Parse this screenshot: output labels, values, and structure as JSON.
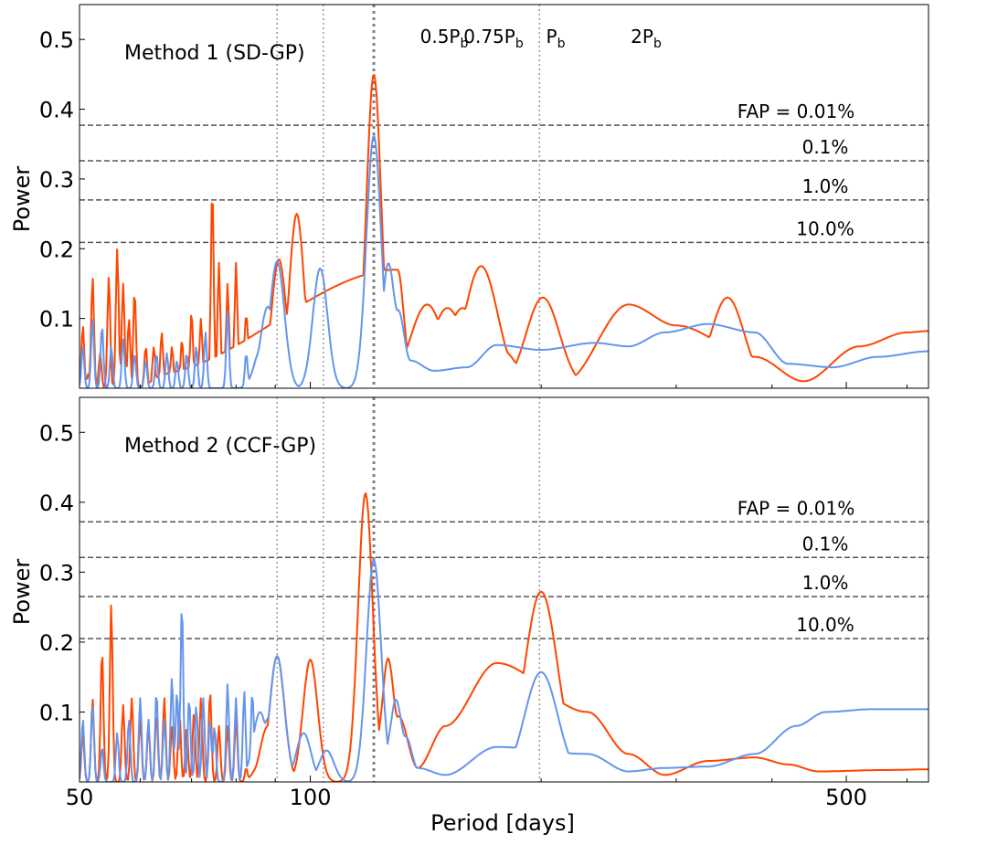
{
  "chart_data": {
    "type": "line",
    "xlabel": "Period [days]",
    "ylabel": "Power",
    "xscale": "log",
    "xlim": [
      50,
      640
    ],
    "ylim": [
      0,
      0.55
    ],
    "xticks": [
      50,
      100,
      500
    ],
    "xtick_labels": [
      "50",
      "100",
      "500"
    ],
    "yticks": [
      0.1,
      0.2,
      0.3,
      0.4,
      0.5
    ],
    "ytick_labels": [
      "0.1",
      "0.2",
      "0.3",
      "0.4",
      "0.5"
    ],
    "colors": {
      "orange": "#ff4500",
      "blue": "#6495ed",
      "fap_line": "#555555",
      "marker_line": "#999999",
      "pb_line": "#808080"
    },
    "markers": [
      {
        "period": 90.5,
        "base": "0.5P",
        "sub": "b"
      },
      {
        "period": 104,
        "base": "0.75P",
        "sub": "b"
      },
      {
        "period": 121,
        "base": "P",
        "sub": "b"
      },
      {
        "period": 199,
        "base": "2P",
        "sub": "b"
      }
    ],
    "panels": [
      {
        "title": "Method 1 (SD-GP)",
        "fap": [
          {
            "label": "FAP = 0.01%",
            "level": 0.377
          },
          {
            "label": "0.1%",
            "level": 0.326
          },
          {
            "label": "1.0%",
            "level": 0.27
          },
          {
            "label": "10.0%",
            "level": 0.209
          }
        ],
        "series": [
          {
            "color": "orange",
            "peaks": [
              [
                50.5,
                0.09
              ],
              [
                51.3,
                0.02
              ],
              [
                52,
                0.16
              ],
              [
                53.2,
                0.05
              ],
              [
                54.6,
                0.16
              ],
              [
                56,
                0.2
              ],
              [
                57,
                0.15
              ],
              [
                58,
                0.1
              ],
              [
                59,
                0.14
              ],
              [
                61,
                0.06
              ],
              [
                62.5,
                0.06
              ],
              [
                64,
                0.08
              ],
              [
                66,
                0.06
              ],
              [
                68,
                0.07
              ],
              [
                70,
                0.11
              ],
              [
                72,
                0.1
              ],
              [
                74.5,
                0.29
              ],
              [
                76,
                0.18
              ],
              [
                78,
                0.15
              ],
              [
                80,
                0.18
              ],
              [
                82.5,
                0.11
              ],
              [
                86.5,
                0.07
              ],
              [
                89,
                0.05
              ],
              [
                91,
                0.185
              ],
              [
                96,
                0.25
              ],
              [
                121,
                0.45
              ],
              [
                142,
                0.12
              ],
              [
                151,
                0.115
              ],
              [
                158,
                0.115
              ],
              [
                167,
                0.175
              ],
              [
                201,
                0.13
              ],
              [
                236,
                0.005
              ],
              [
                350,
                0.13
              ],
              [
                470,
                0.005
              ]
            ],
            "points": [
              [
                62,
                0.02
              ],
              [
                130,
                0.17
              ],
              [
                135,
                0.035
              ],
              [
                145,
                0.1
              ],
              [
                175,
                0.06
              ],
              [
                200,
                0.0
              ],
              [
                215,
                0.01
              ],
              [
                260,
                0.12
              ],
              [
                300,
                0.09
              ],
              [
                380,
                0.045
              ],
              [
                440,
                0.01
              ],
              [
                520,
                0.06
              ],
              [
                600,
                0.08
              ],
              [
                640,
                0.082
              ]
            ]
          },
          {
            "color": "blue",
            "peaks": [
              [
                50.5,
                0.06
              ],
              [
                52,
                0.1
              ],
              [
                53.5,
                0.09
              ],
              [
                55,
                0.06
              ],
              [
                57,
                0.07
              ],
              [
                59,
                0.05
              ],
              [
                61,
                0.04
              ],
              [
                63,
                0.05
              ],
              [
                65,
                0.05
              ],
              [
                67,
                0.04
              ],
              [
                69,
                0.05
              ],
              [
                71,
                0.06
              ],
              [
                73,
                0.08
              ],
              [
                78,
                0.11
              ],
              [
                82.5,
                0.05
              ],
              [
                86.5,
                0.06
              ],
              [
                88,
                0.117
              ],
              [
                90.5,
                0.182
              ],
              [
                103,
                0.172
              ],
              [
                121,
                0.362
              ]
            ],
            "points": [
              [
                125,
                0.3
              ],
              [
                130,
                0.12
              ],
              [
                135,
                0.04
              ],
              [
                145,
                0.025
              ],
              [
                160,
                0.03
              ],
              [
                175,
                0.062
              ],
              [
                200,
                0.055
              ],
              [
                235,
                0.065
              ],
              [
                260,
                0.06
              ],
              [
                290,
                0.08
              ],
              [
                330,
                0.092
              ],
              [
                380,
                0.08
              ],
              [
                420,
                0.035
              ],
              [
                480,
                0.03
              ],
              [
                550,
                0.045
              ],
              [
                640,
                0.053
              ]
            ]
          }
        ]
      },
      {
        "title": "Method 2 (CCF-GP)",
        "fap": [
          {
            "label": "FAP = 0.01%",
            "level": 0.372
          },
          {
            "label": "0.1%",
            "level": 0.321
          },
          {
            "label": "1.0%",
            "level": 0.265
          },
          {
            "label": "10.0%",
            "level": 0.205
          }
        ],
        "series": [
          {
            "color": "orange",
            "peaks": [
              [
                50.5,
                0.07
              ],
              [
                52,
                0.12
              ],
              [
                53.5,
                0.19
              ],
              [
                55,
                0.255
              ],
              [
                57,
                0.11
              ],
              [
                58.5,
                0.12
              ],
              [
                60,
                0.09
              ],
              [
                61.5,
                0.08
              ],
              [
                63,
                0.1
              ],
              [
                64.5,
                0.12
              ],
              [
                66,
                0.08
              ],
              [
                67.5,
                0.1
              ],
              [
                69,
                0.08
              ],
              [
                70.5,
                0.1
              ],
              [
                72,
                0.12
              ],
              [
                74,
                0.13
              ],
              [
                76,
                0.08
              ],
              [
                78,
                0.08
              ],
              [
                80,
                0.09
              ],
              [
                82.5,
                0.02
              ],
              [
                86.5,
                0.03
              ],
              [
                88,
                0.08
              ],
              [
                90.5,
                0.18
              ],
              [
                100,
                0.175
              ],
              [
                118,
                0.413
              ],
              [
                142,
                0.013
              ],
              [
                158,
                0.012
              ],
              [
                200,
                0.272
              ]
            ],
            "points": [
              [
                125,
                0.3
              ],
              [
                130,
                0.1
              ],
              [
                138,
                0.02
              ],
              [
                150,
                0.08
              ],
              [
                175,
                0.17
              ],
              [
                230,
                0.1
              ],
              [
                260,
                0.04
              ],
              [
                290,
                0.01
              ],
              [
                330,
                0.03
              ],
              [
                380,
                0.035
              ],
              [
                420,
                0.025
              ],
              [
                460,
                0.015
              ],
              [
                560,
                0.017
              ],
              [
                640,
                0.018
              ]
            ]
          },
          {
            "color": "blue",
            "peaks": [
              [
                50.5,
                0.09
              ],
              [
                52,
                0.11
              ],
              [
                53.5,
                0.05
              ],
              [
                56,
                0.07
              ],
              [
                58,
                0.09
              ],
              [
                60,
                0.12
              ],
              [
                61.5,
                0.09
              ],
              [
                63,
                0.13
              ],
              [
                64.5,
                0.09
              ],
              [
                66,
                0.15
              ],
              [
                67,
                0.13
              ],
              [
                68,
                0.257
              ],
              [
                69.5,
                0.12
              ],
              [
                71,
                0.11
              ],
              [
                72.5,
                0.12
              ],
              [
                74,
                0.09
              ],
              [
                75,
                0.08
              ],
              [
                78,
                0.14
              ],
              [
                80,
                0.12
              ],
              [
                82,
                0.13
              ],
              [
                84,
                0.13
              ],
              [
                86,
                0.1
              ],
              [
                88,
                0.09
              ],
              [
                90.5,
                0.18
              ],
              [
                93,
                0.02
              ],
              [
                98,
                0.07
              ],
              [
                105,
                0.045
              ],
              [
                121,
                0.318
              ],
              [
                200,
                0.157
              ]
            ],
            "points": [
              [
                128,
                0.2
              ],
              [
                133,
                0.07
              ],
              [
                138,
                0.02
              ],
              [
                150,
                0.01
              ],
              [
                175,
                0.05
              ],
              [
                230,
                0.04
              ],
              [
                260,
                0.015
              ],
              [
                290,
                0.02
              ],
              [
                330,
                0.022
              ],
              [
                380,
                0.04
              ],
              [
                430,
                0.08
              ],
              [
                470,
                0.1
              ],
              [
                540,
                0.104
              ],
              [
                640,
                0.104
              ]
            ]
          }
        ]
      }
    ]
  }
}
